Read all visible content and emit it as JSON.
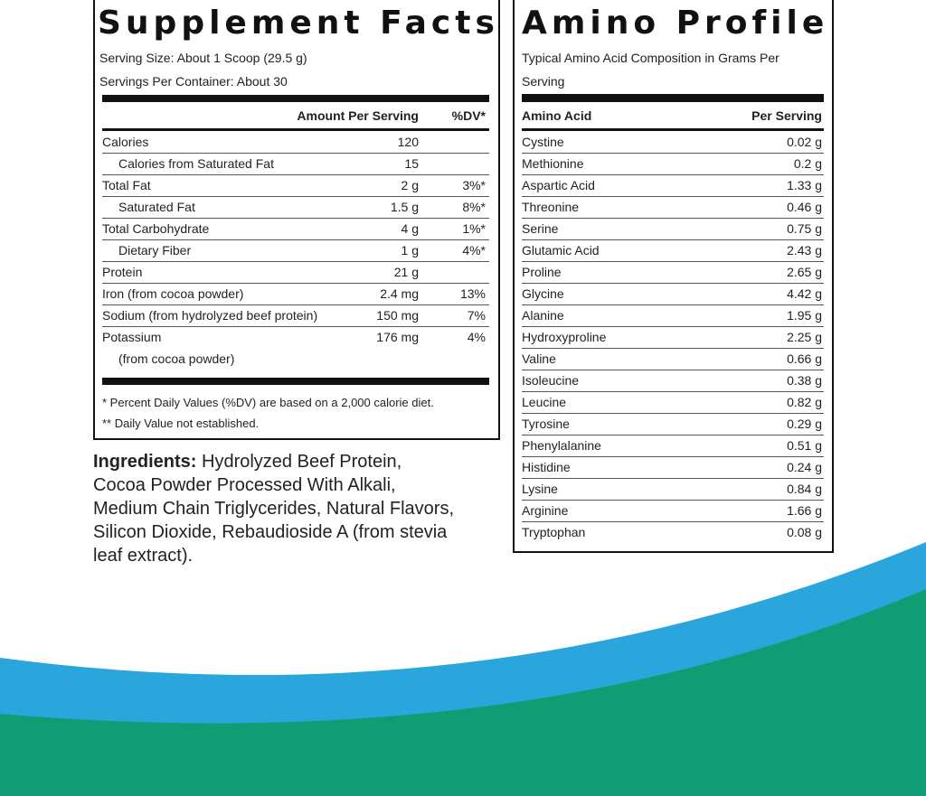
{
  "supplement_facts": {
    "title": "Supplement Facts",
    "serving_size": "Serving Size: About 1 Scoop (29.5 g)",
    "servings_per_container": "Servings Per Container: About 30",
    "header": {
      "amount": "Amount Per Serving",
      "dv": "%DV*"
    },
    "rows": [
      {
        "name": "Calories",
        "amount": "120",
        "sub": [
          {
            "name": "Calories from Saturated Fat",
            "amount": "15"
          }
        ]
      },
      {
        "name": "Total Fat",
        "amount": "2 g",
        "dv": "3%*",
        "sub": [
          {
            "name": "Saturated Fat",
            "amount": "1.5 g",
            "dv": "8%*"
          }
        ]
      },
      {
        "name": "Total Carbohydrate",
        "amount": "4 g",
        "dv": "1%*",
        "sub": [
          {
            "name": "Dietary Fiber",
            "amount": "1 g",
            "dv": "4%*"
          }
        ]
      },
      {
        "name": "Protein",
        "amount": "21 g"
      },
      {
        "name": "Iron (from cocoa powder)",
        "amount": "2.4 mg",
        "dv": "13%"
      },
      {
        "name": "Sodium (from hydrolyzed beef protein)",
        "amount": "150 mg",
        "dv": "7%"
      },
      {
        "name": "Potassium",
        "name_line2": "(from cocoa powder)",
        "amount": "176 mg",
        "dv": "4%"
      }
    ],
    "footnotes": [
      "* Percent Daily Values (%DV) are based on a 2,000 calorie diet.",
      "** Daily Value not established."
    ]
  },
  "ingredients": {
    "label": "Ingredients:",
    "text": "Hydrolyzed Beef Protein, Cocoa Powder Processed With Alkali, Medium Chain Triglycerides, Natural Flavors, Silicon Dioxide, Rebaudioside A (from stevia leaf extract)."
  },
  "amino_profile": {
    "title": "Amino Profile",
    "subtitle": "Typical Amino Acid Composition in Grams Per Serving",
    "header": {
      "acid": "Amino Acid",
      "serving": "Per Serving"
    },
    "rows": [
      [
        "Cystine",
        "0.02 g"
      ],
      [
        "Methionine",
        "0.2 g"
      ],
      [
        "Aspartic Acid",
        "1.33 g"
      ],
      [
        "Threonine",
        "0.46 g"
      ],
      [
        "Serine",
        "0.75 g"
      ],
      [
        "Glutamic Acid",
        "2.43 g"
      ],
      [
        "Proline",
        "2.65 g"
      ],
      [
        "Glycine",
        "4.42 g"
      ],
      [
        "Alanine",
        "1.95 g"
      ],
      [
        "Hydroxyproline",
        "2.25 g"
      ],
      [
        "Valine",
        "0.66 g"
      ],
      [
        "Isoleucine",
        "0.38 g"
      ],
      [
        "Leucine",
        "0.82 g"
      ],
      [
        "Tyrosine",
        "0.29 g"
      ],
      [
        "Phenylalanine",
        "0.51 g"
      ],
      [
        "Histidine",
        "0.24 g"
      ],
      [
        "Lysine",
        "0.84 g"
      ],
      [
        "Arginine",
        "1.66 g"
      ],
      [
        "Tryptophan",
        "0.08 g"
      ]
    ]
  }
}
